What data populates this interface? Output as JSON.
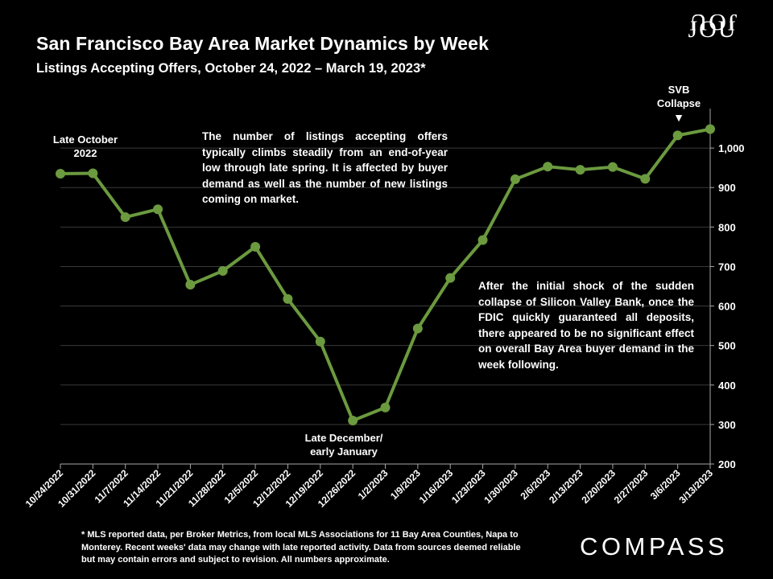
{
  "header": {
    "title": "San Francisco Bay Area Market Dynamics by Week",
    "subtitle": "Listings Accepting Offers, October 24, 2022 – March 19, 2023*"
  },
  "brand": {
    "top_logo_top": "JOU",
    "top_logo_bottom": "JOU",
    "company": "COMPASS"
  },
  "annotations": {
    "late_october": "Late October 2022",
    "seasonal_note": "The number of listings accepting offers typically climbs steadily from an end-of-year low through late spring. It is affected by buyer demand as well as the number of new listings coming on market.",
    "late_december": "Late December/ early January",
    "svb_note": "After the initial shock of the sudden collapse of Silicon Valley Bank, once the FDIC quickly guaranteed all deposits, there appeared to be no significant effect on overall Bay Area buyer demand in the week following.",
    "svb_label": "SVB Collapse",
    "svb_arrow": "▼"
  },
  "footnote": "* MLS reported data, per Broker Metrics, from local MLS Associations for 11 Bay Area Counties, Napa to Monterey. Recent weeks' data may change with late reported activity. Data from sources deemed reliable but may contain errors and subject to revision. All numbers approximate.",
  "chart_data": {
    "type": "line",
    "title": "San Francisco Bay Area Market Dynamics by Week",
    "xlabel": "",
    "ylabel": "",
    "categories": [
      "10/24/2022",
      "10/31/2022",
      "11/7/2022",
      "11/14/2022",
      "11/21/2022",
      "11/28/2022",
      "12/5/2022",
      "12/12/2022",
      "12/19/2022",
      "12/26/2022",
      "1/2/2023",
      "1/9/2023",
      "1/16/2023",
      "1/23/2023",
      "1/30/2023",
      "2/6/2023",
      "2/13/2023",
      "2/20/2023",
      "2/27/2023",
      "3/6/2023",
      "3/13/2023"
    ],
    "series": [
      {
        "name": "Listings Accepting Offers",
        "values": [
          935,
          936,
          825,
          845,
          654,
          689,
          750,
          618,
          510,
          310,
          343,
          543,
          671,
          767,
          921,
          953,
          945,
          952,
          922,
          1032,
          1048
        ]
      }
    ],
    "ylim": [
      200,
      1100
    ],
    "yticks": [
      200,
      300,
      400,
      500,
      600,
      700,
      800,
      900,
      1000
    ],
    "ytick_labels": [
      "200",
      "300",
      "400",
      "500",
      "600",
      "700",
      "800",
      "900",
      "1,000"
    ],
    "grid": "horizontal",
    "axis_position": "right",
    "line_color": "#6b9a3f"
  }
}
